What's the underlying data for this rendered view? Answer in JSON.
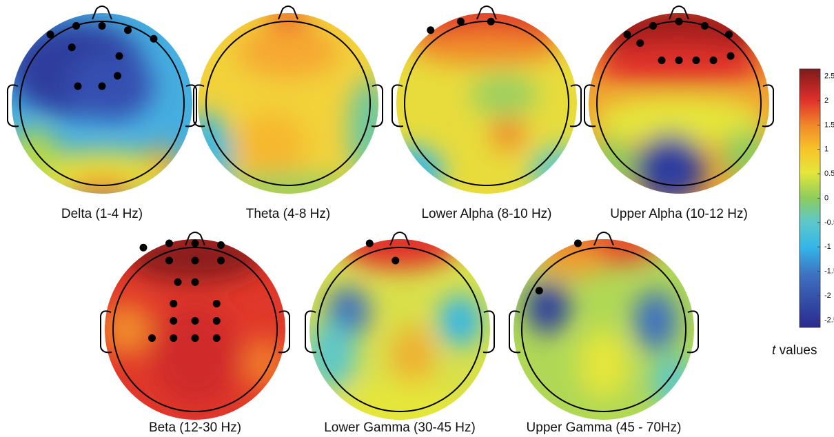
{
  "panels": [
    {
      "label": "Delta (1-4 Hz)"
    },
    {
      "label": "Theta (4-8 Hz)"
    },
    {
      "label": "Lower Alpha (8-10 Hz)"
    },
    {
      "label": "Upper Alpha (10-12 Hz)"
    },
    {
      "label": "Beta (12-30 Hz)"
    },
    {
      "label": "Lower Gamma (30-45 Hz)"
    },
    {
      "label": "Upper Gamma (45 - 70Hz)"
    }
  ],
  "colorbar": {
    "lim": [
      -2.65,
      2.65
    ],
    "ticks": [
      2.5,
      2,
      1.5,
      1,
      0.5,
      0,
      -0.5,
      -1,
      -1.5,
      -2,
      -2.5
    ],
    "label_var": "t",
    "label": "values"
  }
}
